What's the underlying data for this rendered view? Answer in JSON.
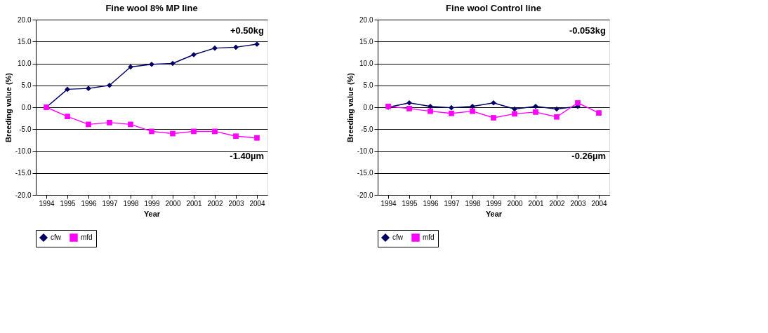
{
  "chart_data": [
    {
      "type": "line",
      "title": "Fine wool 8% MP line",
      "xlabel": "Year",
      "ylabel": "Breeding value (%)",
      "categories": [
        "1994",
        "1995",
        "1996",
        "1997",
        "1998",
        "1999",
        "2000",
        "2001",
        "2002",
        "2003",
        "2004"
      ],
      "series": [
        {
          "name": "cfw",
          "color": "#000066",
          "marker": "diamond",
          "values": [
            0,
            4.1,
            4.3,
            5.0,
            9.2,
            9.8,
            10.0,
            12.0,
            13.5,
            13.7,
            14.4
          ]
        },
        {
          "name": "mfd",
          "color": "#ff00ff",
          "marker": "square",
          "values": [
            0,
            -2.1,
            -3.9,
            -3.5,
            -3.9,
            -5.5,
            -6.0,
            -5.5,
            -5.5,
            -6.6,
            -7.0
          ]
        }
      ],
      "ylim": [
        -20,
        20
      ],
      "yticks": [
        {
          "value": -20,
          "label": "-20.0"
        },
        {
          "value": -15,
          "label": "-15.0"
        },
        {
          "value": -10,
          "label": "-10.0"
        },
        {
          "value": -5,
          "label": "-5.0"
        },
        {
          "value": 0,
          "label": "0.0"
        },
        {
          "value": 5,
          "label": "5.0"
        },
        {
          "value": 10,
          "label": "10.0"
        },
        {
          "value": 15,
          "label": "15.0"
        },
        {
          "value": 20,
          "label": "20.0"
        }
      ],
      "annotations": [
        "+0.50kg",
        "-1.40µm"
      ],
      "grid": "y",
      "legend": "bottom"
    },
    {
      "type": "line",
      "title": "Fine wool Control line",
      "xlabel": "Year",
      "ylabel": "Breeding value (%)",
      "categories": [
        "1994",
        "1995",
        "1996",
        "1997",
        "1998",
        "1999",
        "2000",
        "2001",
        "2002",
        "2003",
        "2004"
      ],
      "series": [
        {
          "name": "cfw",
          "color": "#000066",
          "marker": "diamond",
          "values": [
            0,
            1.0,
            0.2,
            -0.1,
            0.2,
            1.0,
            -0.4,
            0.2,
            -0.4,
            0.2,
            null
          ]
        },
        {
          "name": "mfd",
          "color": "#ff00ff",
          "marker": "square",
          "values": [
            0.2,
            -0.3,
            -0.9,
            -1.4,
            -0.9,
            -2.4,
            -1.5,
            -1.1,
            -2.2,
            1.0,
            -1.3
          ]
        }
      ],
      "ylim": [
        -20,
        20
      ],
      "yticks": [
        {
          "value": -20,
          "label": "-20.0"
        },
        {
          "value": -15,
          "label": "-15.0"
        },
        {
          "value": -10,
          "label": "-10.0"
        },
        {
          "value": -5,
          "label": "-5.0"
        },
        {
          "value": 0,
          "label": "0.0"
        },
        {
          "value": 5,
          "label": "5.0"
        },
        {
          "value": 10,
          "label": "10.0"
        },
        {
          "value": 15,
          "label": "15.0"
        },
        {
          "value": 20,
          "label": "20.0"
        }
      ],
      "annotations": [
        "-0.053kg",
        "-0.26µm"
      ],
      "grid": "y",
      "legend": "bottom"
    }
  ]
}
